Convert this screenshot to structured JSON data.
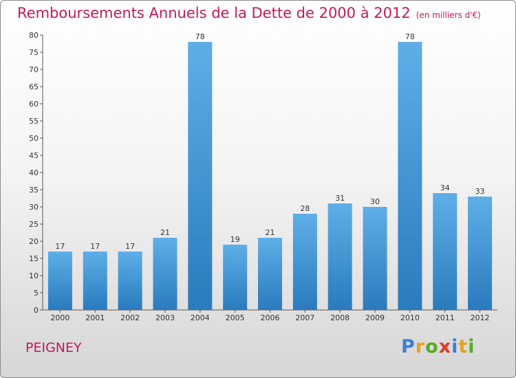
{
  "title": "Remboursements Annuels de la Dette de 2000 à 2012",
  "unit": "(en milliers d'€)",
  "commune": "PEIGNEY",
  "logo": "Proxiti",
  "colors": {
    "bar_light": "#5eaee8",
    "bar_dark": "#2a7bbd",
    "title": "#c2185b"
  },
  "chart_data": {
    "type": "bar",
    "categories": [
      "2000",
      "2001",
      "2002",
      "2003",
      "2004",
      "2005",
      "2006",
      "2007",
      "2008",
      "2009",
      "2010",
      "2011",
      "2012"
    ],
    "values": [
      17,
      17,
      17,
      21,
      78,
      19,
      21,
      28,
      31,
      30,
      78,
      34,
      33
    ],
    "title": "Remboursements Annuels de la Dette de 2000 à 2012",
    "ylim": [
      0,
      80
    ],
    "yticks": [
      0,
      5,
      10,
      15,
      20,
      25,
      30,
      35,
      40,
      45,
      50,
      55,
      60,
      65,
      70,
      75,
      80
    ],
    "grid": false,
    "data_labels": true
  }
}
